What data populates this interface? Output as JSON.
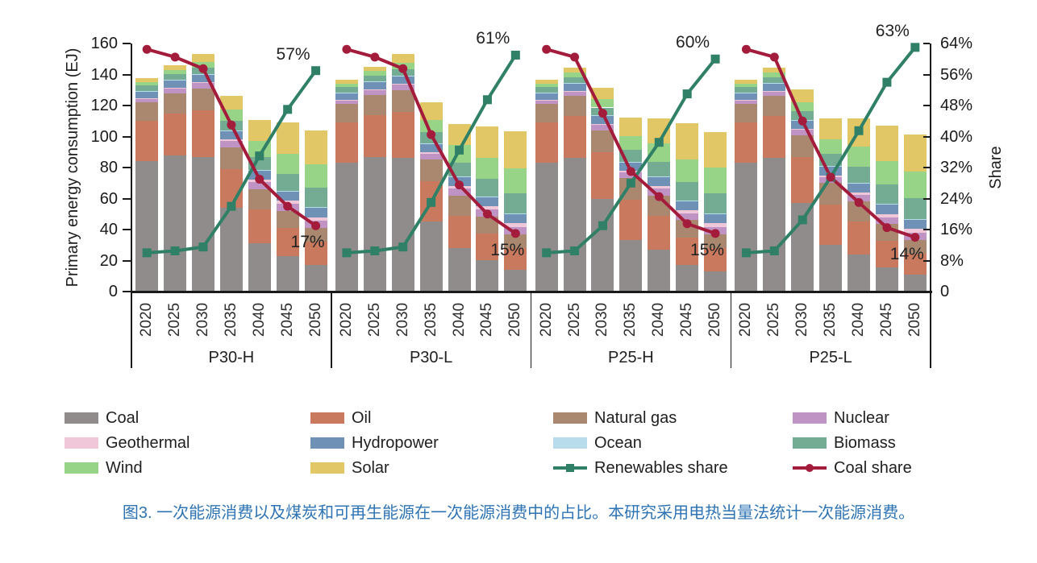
{
  "chart_data": {
    "type": "stacked-bar+line",
    "title": "",
    "left_axis": {
      "label": "Primary energy consumption (EJ)",
      "min": 0,
      "max": 160,
      "step": 20,
      "tick_labels": [
        "0",
        "20",
        "40",
        "60",
        "80",
        "100",
        "120",
        "140",
        "160"
      ]
    },
    "right_axis": {
      "label": "Share",
      "min": 0,
      "max": 64,
      "step": 8,
      "tick_labels": [
        "0",
        "8%",
        "16%",
        "24%",
        "32%",
        "40%",
        "48%",
        "56%",
        "64%"
      ]
    },
    "years": [
      "2020",
      "2025",
      "2030",
      "2035",
      "2040",
      "2045",
      "2050"
    ],
    "scenarios": [
      "P30-H",
      "P30-L",
      "P25-H",
      "P25-L"
    ],
    "stack_order": [
      "Coal",
      "Oil",
      "Natural gas",
      "Nuclear",
      "Geothermal",
      "Hydropower",
      "Ocean",
      "Biomass",
      "Wind",
      "Solar"
    ],
    "colors": {
      "Coal": "#908c8c",
      "Oil": "#c97a5e",
      "Natural gas": "#a9886f",
      "Nuclear": "#bf93c3",
      "Geothermal": "#f0c6d9",
      "Hydropower": "#6f91b5",
      "Ocean": "#b8dcec",
      "Biomass": "#73ac92",
      "Wind": "#97d487",
      "Solar": "#e2c766"
    },
    "bars_EJ": {
      "P30-H": {
        "Coal": [
          84,
          88,
          87,
          54,
          31,
          23,
          17
        ],
        "Oil": [
          26,
          27,
          30,
          25,
          22,
          18,
          15
        ],
        "Natural gas": [
          12,
          13,
          14,
          14,
          13,
          11,
          9
        ],
        "Nuclear": [
          2.5,
          3,
          3.5,
          4,
          4.5,
          4.5,
          4.5
        ],
        "Geothermal": [
          0.3,
          0.4,
          0.5,
          1,
          1.5,
          2,
          2.5
        ],
        "Hydropower": [
          4.5,
          5,
          5,
          5.5,
          6,
          6,
          6
        ],
        "Ocean": [
          0.2,
          0.2,
          0.2,
          0.2,
          0.3,
          0.4,
          0.5
        ],
        "Biomass": [
          3.5,
          3.5,
          4,
          6.5,
          8.5,
          11,
          12.5
        ],
        "Wind": [
          2,
          3,
          4,
          7,
          10.5,
          13,
          15
        ],
        "Solar": [
          2.5,
          3,
          5,
          9,
          13.5,
          20,
          22
        ]
      },
      "P30-L": {
        "Coal": [
          83,
          87,
          86,
          45,
          28,
          20.5,
          14
        ],
        "Oil": [
          26,
          27,
          30,
          26,
          21,
          17,
          14
        ],
        "Natural gas": [
          12,
          13,
          14,
          14,
          13,
          11,
          9
        ],
        "Nuclear": [
          2.5,
          3,
          3.5,
          4,
          4.5,
          4.5,
          4.5
        ],
        "Geothermal": [
          0.3,
          0.4,
          0.5,
          1,
          1.5,
          2,
          2.5
        ],
        "Hydropower": [
          4.5,
          5,
          5,
          5.5,
          6,
          6,
          6
        ],
        "Ocean": [
          0.2,
          0.2,
          0.2,
          0.3,
          0.3,
          0.4,
          0.5
        ],
        "Biomass": [
          3.5,
          3.5,
          4,
          7,
          9,
          11.5,
          13
        ],
        "Wind": [
          2,
          3,
          4.5,
          8,
          11,
          13.5,
          16
        ],
        "Solar": [
          2.5,
          3,
          5.5,
          11.5,
          14,
          20,
          24
        ]
      },
      "P25-H": {
        "Coal": [
          83,
          86,
          60,
          33,
          27,
          17,
          13
        ],
        "Oil": [
          26,
          27,
          30,
          26,
          22,
          18,
          15
        ],
        "Natural gas": [
          12,
          13,
          14,
          14,
          13,
          11,
          9
        ],
        "Nuclear": [
          2.5,
          3,
          3.5,
          4,
          4.5,
          4.5,
          4.5
        ],
        "Geothermal": [
          0.3,
          0.4,
          0.5,
          1,
          1.5,
          2,
          2.5
        ],
        "Hydropower": [
          4.5,
          5,
          5.5,
          5.5,
          6,
          6,
          6
        ],
        "Ocean": [
          0.2,
          0.2,
          0.2,
          0.3,
          0.3,
          0.4,
          0.5
        ],
        "Biomass": [
          3.5,
          3.5,
          5,
          7.5,
          9.5,
          12,
          13
        ],
        "Wind": [
          2,
          3,
          5.5,
          9,
          12,
          14.5,
          16.5
        ],
        "Solar": [
          2.5,
          3.5,
          7,
          12,
          16,
          23,
          23
        ]
      },
      "P25-L": {
        "Coal": [
          83,
          86,
          57,
          30,
          24,
          15.5,
          11
        ],
        "Oil": [
          26,
          27,
          30,
          26,
          21,
          17,
          13.5
        ],
        "Natural gas": [
          12,
          13,
          14,
          14,
          13,
          11,
          9
        ],
        "Nuclear": [
          2.5,
          3,
          3.5,
          4,
          4.5,
          4.5,
          4.5
        ],
        "Geothermal": [
          0.3,
          0.4,
          0.5,
          1,
          1.5,
          2,
          2.5
        ],
        "Hydropower": [
          4.5,
          5,
          5.5,
          5.5,
          6,
          6,
          6
        ],
        "Ocean": [
          0.2,
          0.2,
          0.2,
          0.3,
          0.3,
          0.4,
          0.5
        ],
        "Biomass": [
          3.5,
          3.5,
          5.5,
          8,
          10,
          12.5,
          13.5
        ],
        "Wind": [
          2,
          3,
          6,
          9.5,
          13,
          15,
          17
        ],
        "Solar": [
          2.5,
          3.5,
          8,
          13.5,
          18.5,
          23,
          24
        ]
      }
    },
    "lines_share_pct": [
      {
        "name": "Renewables share",
        "color": "#2f8066",
        "marker": "square",
        "values": {
          "P30-H": [
            10,
            10.5,
            11.5,
            22,
            35,
            47,
            57
          ],
          "P30-L": [
            10,
            10.5,
            11.5,
            23,
            36.5,
            49.5,
            61
          ],
          "P25-H": [
            10,
            10.5,
            17,
            28,
            38.5,
            51,
            60
          ],
          "P25-L": [
            10,
            10.5,
            18.5,
            29.5,
            41.5,
            54,
            63
          ]
        },
        "end_labels": {
          "P30-H": "57%",
          "P30-L": "61%",
          "P25-H": "60%",
          "P25-L": "63%"
        }
      },
      {
        "name": "Coal share",
        "color": "#a41c3c",
        "marker": "circle",
        "values": {
          "P30-H": [
            62.5,
            60.5,
            57.5,
            43,
            29,
            22,
            17
          ],
          "P30-L": [
            62.5,
            60.5,
            57.5,
            40.5,
            27.5,
            20,
            15
          ],
          "P25-H": [
            62.5,
            60.5,
            46,
            31,
            24.5,
            17.5,
            15
          ],
          "P25-L": [
            62.5,
            60.5,
            44,
            29.5,
            23,
            16.5,
            14
          ]
        },
        "end_labels": {
          "P30-H": "17%",
          "P30-L": "15%",
          "P25-H": "15%",
          "P25-L": "14%"
        }
      }
    ]
  },
  "legend": {
    "items": [
      {
        "label": "Coal",
        "type": "swatch",
        "color": "#908c8c"
      },
      {
        "label": "Oil",
        "type": "swatch",
        "color": "#c97a5e"
      },
      {
        "label": "Natural gas",
        "type": "swatch",
        "color": "#a9886f"
      },
      {
        "label": "Nuclear",
        "type": "swatch",
        "color": "#bf93c3"
      },
      {
        "label": "Geothermal",
        "type": "swatch",
        "color": "#f0c6d9"
      },
      {
        "label": "Hydropower",
        "type": "swatch",
        "color": "#6f91b5"
      },
      {
        "label": "Ocean",
        "type": "swatch",
        "color": "#b8dcec"
      },
      {
        "label": "Biomass",
        "type": "swatch",
        "color": "#73ac92"
      },
      {
        "label": "Wind",
        "type": "swatch",
        "color": "#97d487"
      },
      {
        "label": "Solar",
        "type": "swatch",
        "color": "#e2c766"
      },
      {
        "label": "Renewables share",
        "type": "line",
        "marker": "square",
        "color": "#2f8066"
      },
      {
        "label": "Coal share",
        "type": "line",
        "marker": "circle",
        "color": "#a41c3c"
      }
    ]
  },
  "caption": {
    "text": "图3. 一次能源消费以及煤炭和可再生能源在一次能源消费中的占比。本研究采用电热当量法统计一次能源消费。"
  }
}
